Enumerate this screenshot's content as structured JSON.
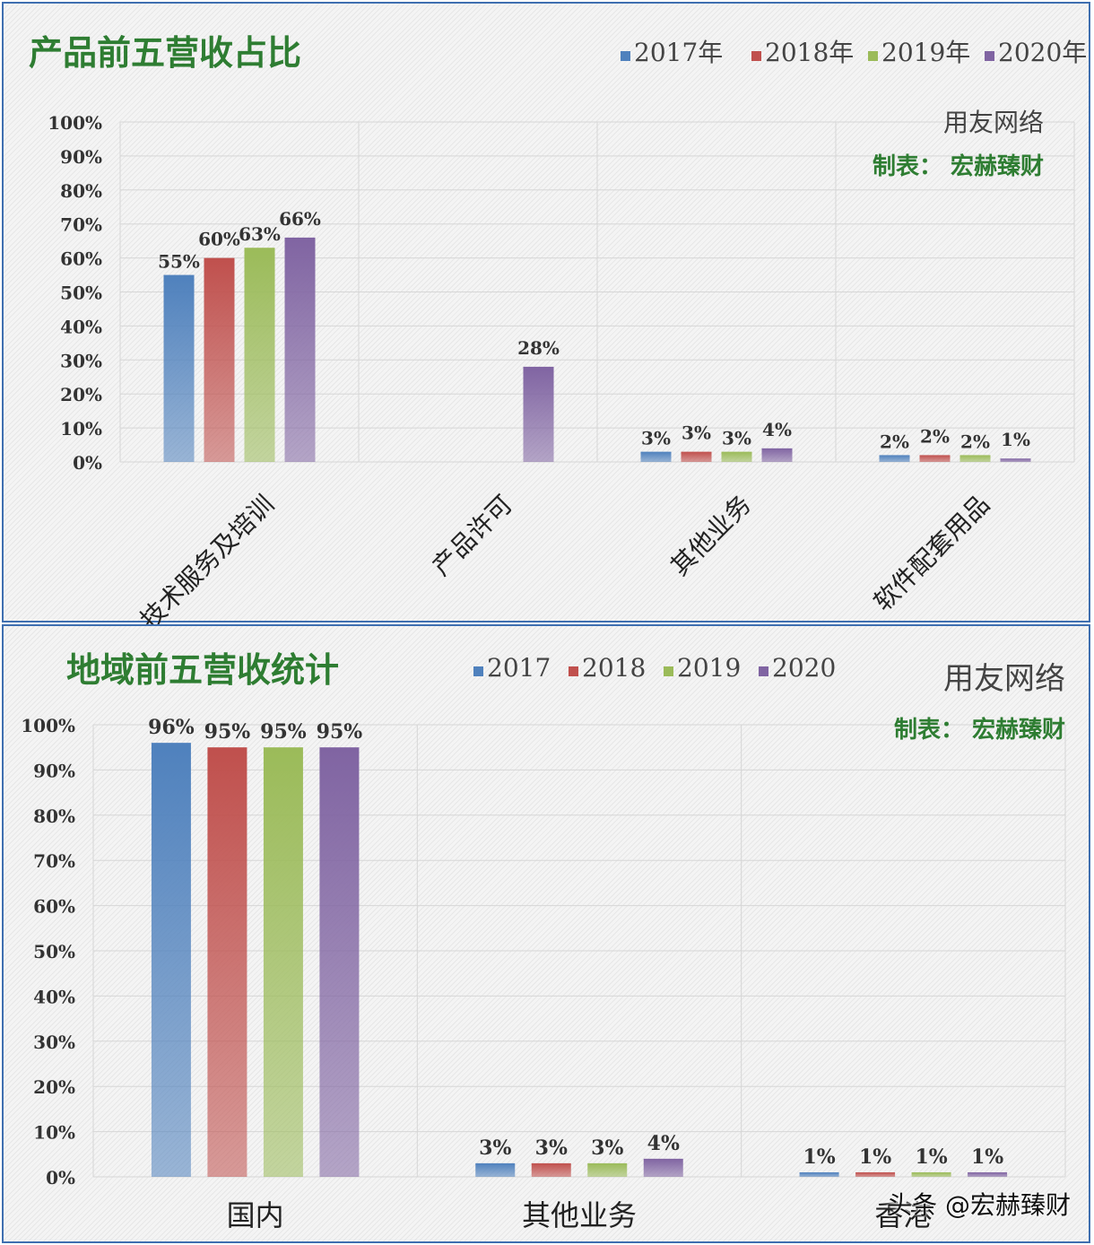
{
  "colors": {
    "2017": "#4f81bd",
    "2018": "#c0504d",
    "2019": "#9bbb59",
    "2020": "#8064a2",
    "title": "#2e7d32"
  },
  "chart_data": [
    {
      "type": "bar",
      "title": "产品前五营收占比",
      "legend_position": "top-right",
      "notes": [
        "用友网络",
        "制表：  宏赫臻财"
      ],
      "categories": [
        "技术服务及培训",
        "产品许可",
        "其他业务",
        "软件配套用品"
      ],
      "series": [
        {
          "name": "2017年",
          "values": [
            55,
            null,
            3,
            2
          ],
          "labels": [
            "55%",
            "",
            "3%",
            "2%"
          ]
        },
        {
          "name": "2018年",
          "values": [
            60,
            null,
            3,
            2
          ],
          "labels": [
            "60%",
            "",
            "3%",
            "2%"
          ]
        },
        {
          "name": "2019年",
          "values": [
            63,
            null,
            3,
            2
          ],
          "labels": [
            "63%",
            "",
            "3%",
            "2%"
          ]
        },
        {
          "name": "2020年",
          "values": [
            66,
            28,
            4,
            1
          ],
          "labels": [
            "66%",
            "28%",
            "4%",
            "1%"
          ]
        }
      ],
      "yticks": [
        "0%",
        "10%",
        "20%",
        "30%",
        "40%",
        "50%",
        "60%",
        "70%",
        "80%",
        "90%",
        "100%"
      ],
      "ylim": [
        0,
        100
      ],
      "grid": true
    },
    {
      "type": "bar",
      "title": "地域前五营收统计",
      "legend_position": "top-center",
      "notes": [
        "用友网络",
        "制表：  宏赫臻财"
      ],
      "categories": [
        "国内",
        "其他业务",
        "香港"
      ],
      "series": [
        {
          "name": "2017",
          "values": [
            96,
            3,
            1
          ],
          "labels": [
            "96%",
            "3%",
            "1%"
          ]
        },
        {
          "name": "2018",
          "values": [
            95,
            3,
            1
          ],
          "labels": [
            "95%",
            "3%",
            "1%"
          ]
        },
        {
          "name": "2019",
          "values": [
            95,
            3,
            1
          ],
          "labels": [
            "95%",
            "3%",
            "1%"
          ]
        },
        {
          "name": "2020",
          "values": [
            95,
            4,
            1
          ],
          "labels": [
            "95%",
            "4%",
            "1%"
          ]
        }
      ],
      "yticks": [
        "0%",
        "10%",
        "20%",
        "30%",
        "40%",
        "50%",
        "60%",
        "70%",
        "80%",
        "90%",
        "100%"
      ],
      "ylim": [
        0,
        100
      ],
      "grid": true
    }
  ],
  "watermark": "头条 @宏赫臻财"
}
